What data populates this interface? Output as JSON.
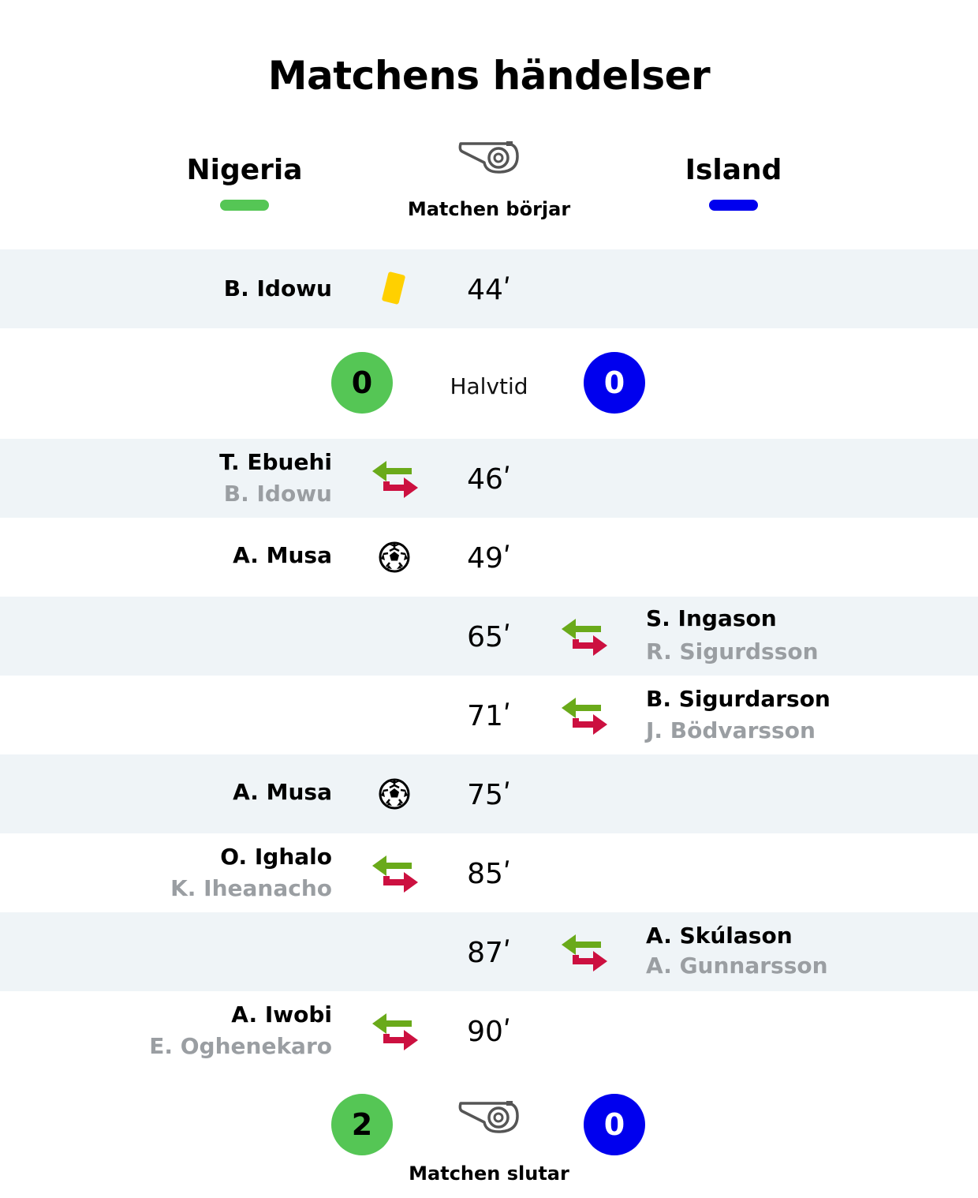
{
  "title": "Matchens händelser",
  "colors": {
    "home": "#55c655",
    "away": "#0000ee",
    "shade": "#eff4f7",
    "yellow_card": "#ffd000",
    "sub_in": "#6aaa1a",
    "sub_out": "#cc1040",
    "muted": "#9a9ea2"
  },
  "teams": {
    "home": {
      "name": "Nigeria"
    },
    "away": {
      "name": "Island"
    }
  },
  "start": {
    "label": "Matchen börjar",
    "icon": "whistle-icon"
  },
  "halftime": {
    "label": "Halvtid",
    "home_score": "0",
    "away_score": "0"
  },
  "end": {
    "label": "Matchen slutar",
    "icon": "whistle-icon",
    "home_score": "2",
    "away_score": "0"
  },
  "events": [
    {
      "minute": "44",
      "side": "home",
      "type": "yellow-card",
      "icon": "yellow-card-icon",
      "player": "B. Idowu"
    },
    {
      "minute": "46",
      "side": "home",
      "type": "substitution",
      "icon": "substitution-icon",
      "player_in": "T. Ebuehi",
      "player_out": "B. Idowu"
    },
    {
      "minute": "49",
      "side": "home",
      "type": "goal",
      "icon": "football-icon",
      "player": "A. Musa"
    },
    {
      "minute": "65",
      "side": "away",
      "type": "substitution",
      "icon": "substitution-icon",
      "player_in": "S. Ingason",
      "player_out": "R. Sigurdsson"
    },
    {
      "minute": "71",
      "side": "away",
      "type": "substitution",
      "icon": "substitution-icon",
      "player_in": "B. Sigurdarson",
      "player_out": "J. Bödvarsson"
    },
    {
      "minute": "75",
      "side": "home",
      "type": "goal",
      "icon": "football-icon",
      "player": "A. Musa"
    },
    {
      "minute": "85",
      "side": "home",
      "type": "substitution",
      "icon": "substitution-icon",
      "player_in": "O. Ighalo",
      "player_out": "K. Iheanacho"
    },
    {
      "minute": "87",
      "side": "away",
      "type": "substitution",
      "icon": "substitution-icon",
      "player_in": "A. Skúlason",
      "player_out": "A. Gunnarsson"
    },
    {
      "minute": "90",
      "side": "home",
      "type": "substitution",
      "icon": "substitution-icon",
      "player_in": "A. Iwobi",
      "player_out": "E. Oghenekaro"
    }
  ]
}
